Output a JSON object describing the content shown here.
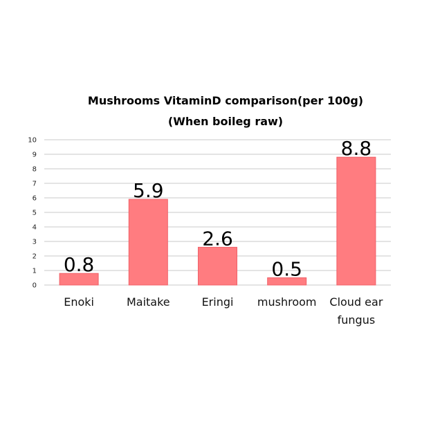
{
  "chart_data": {
    "type": "bar",
    "title": "Mushrooms VitaminD comparison(per 100g)",
    "subtitle": "(When boileg raw)",
    "xlabel": "",
    "ylabel": "",
    "categories": [
      "Enoki",
      "Maitake",
      "Eringi",
      "mushroom",
      "Cloud ear fungus"
    ],
    "values": [
      0.8,
      5.9,
      2.6,
      0.5,
      8.8
    ],
    "data_labels": [
      "0.8",
      "5.9",
      "2.6",
      "0.5",
      "8.8"
    ],
    "ylim": [
      0,
      10
    ],
    "yticks": [
      "0",
      "1",
      "2",
      "3",
      "4",
      "5",
      "6",
      "7",
      "8",
      "9",
      "10"
    ],
    "grid": true,
    "legend": "none",
    "colors": {
      "bar": "#ff7c80",
      "bar_border": "#f06068",
      "grid": "#c8c8c8"
    }
  }
}
